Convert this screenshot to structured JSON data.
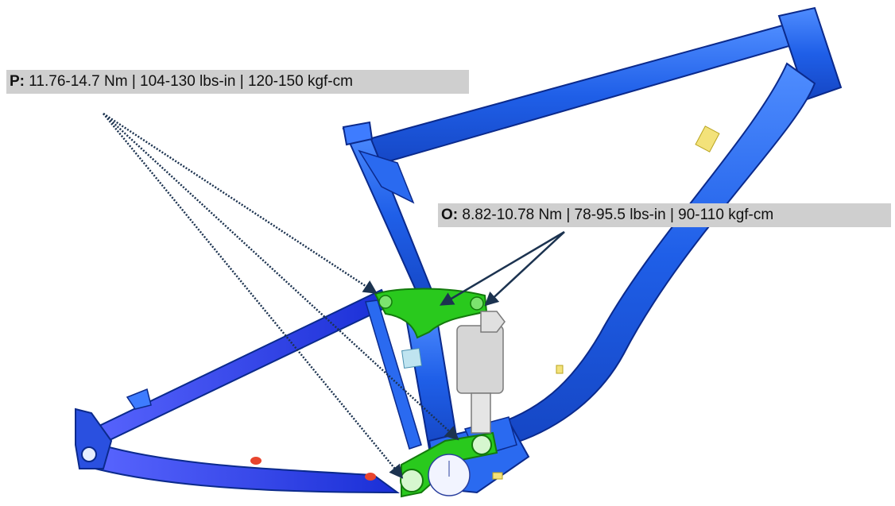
{
  "callouts": {
    "p": {
      "letter": "P:",
      "text": " 11.76-14.7 Nm | 104-130 lbs-in | 120-150 kgf-cm"
    },
    "o": {
      "letter": "O:",
      "text": " 8.82-10.78 Nm | 78-95.5 lbs-in | 90-110 kgf-cm"
    }
  },
  "colors": {
    "frame_blue": "#1f5fe8",
    "frame_outline": "#0b2a8c",
    "rear_triangle": "#1a2fd6",
    "linkage_green": "#29c91d",
    "shock_gray": "#d6d6d6",
    "arrow_navy": "#1c3350",
    "marker_yellow": "#f3e27a",
    "marker_red": "#e8452e",
    "callout_bg": "#cfcfcf"
  }
}
